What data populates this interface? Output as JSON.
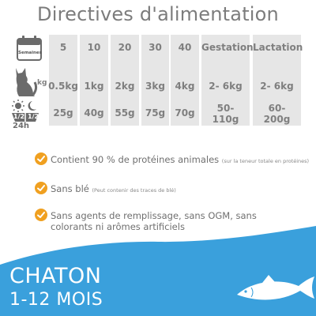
{
  "title": "Directives d'alimentation",
  "row_labels": {
    "weeks_badge": "Semaines",
    "kg": "kg",
    "day": "24h",
    "half_left": "1/2",
    "half_right": "1/2"
  },
  "columns": [
    {
      "head": "5",
      "weight": "0.5kg",
      "food": "25g"
    },
    {
      "head": "10",
      "weight": "1kg",
      "food": "40g"
    },
    {
      "head": "20",
      "weight": "2kg",
      "food": "55g"
    },
    {
      "head": "30",
      "weight": "3kg",
      "food": "75g"
    },
    {
      "head": "40",
      "weight": "4kg",
      "food": "70g"
    },
    {
      "head": "Gestation",
      "weight": "2- 6kg",
      "food": "50-\n110g"
    },
    {
      "head": "Lactation",
      "weight": "2- 6kg",
      "food": "60-\n200g"
    }
  ],
  "benefits": [
    {
      "main": "Contient 90 % de protéines animales",
      "note": "(sur la teneur totale en protéines)"
    },
    {
      "main": "Sans blé",
      "note": "(Peut contenir des traces de blé)"
    },
    {
      "main": "Sans agents de remplissage, sans OGM, sans colorants ni arômes artificiels",
      "note": ""
    }
  ],
  "footer": {
    "product": "CHATON",
    "age": "1-12 MOIS"
  },
  "colors": {
    "accent_orange": "#f0a020",
    "wave_blue": "#3aa0dc",
    "cell_gray": "#e6e6e6"
  }
}
